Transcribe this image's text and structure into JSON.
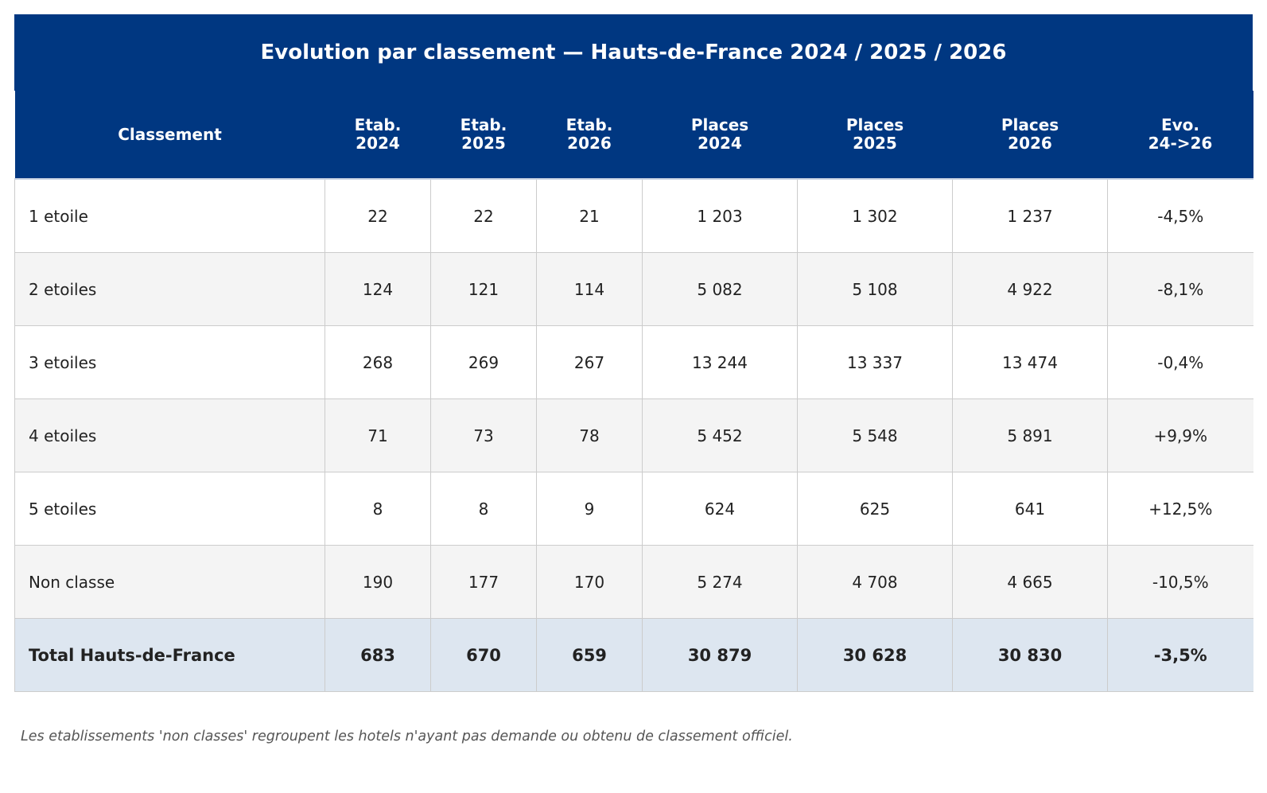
{
  "chart_data": {
    "type": "table",
    "title": "Evolution par classement — Hauts-de-France 2024 / 2025 / 2026",
    "header_bg": "#003781",
    "total_row_bg": "#dde6f0",
    "stripe_bg": "#f4f4f4",
    "columns": [
      [
        "Classement"
      ],
      [
        "Etab.",
        "2024"
      ],
      [
        "Etab.",
        "2025"
      ],
      [
        "Etab.",
        "2026"
      ],
      [
        "Places",
        "2024"
      ],
      [
        "Places",
        "2025"
      ],
      [
        "Places",
        "2026"
      ],
      [
        "Evo.",
        "24->26"
      ]
    ],
    "rows": [
      [
        "1 etoile",
        "22",
        "22",
        "21",
        "1 203",
        "1 302",
        "1 237",
        "-4,5%"
      ],
      [
        "2 etoiles",
        "124",
        "121",
        "114",
        "5 082",
        "5 108",
        "4 922",
        "-8,1%"
      ],
      [
        "3 etoiles",
        "268",
        "269",
        "267",
        "13 244",
        "13 337",
        "13 474",
        "-0,4%"
      ],
      [
        "4 etoiles",
        "71",
        "73",
        "78",
        "5 452",
        "5 548",
        "5 891",
        "+9,9%"
      ],
      [
        "5 etoiles",
        "8",
        "8",
        "9",
        "624",
        "625",
        "641",
        "+12,5%"
      ],
      [
        "Non classe",
        "190",
        "177",
        "170",
        "5 274",
        "4 708",
        "4 665",
        "-10,5%"
      ]
    ],
    "total": [
      "Total Hauts-de-France",
      "683",
      "670",
      "659",
      "30 879",
      "30 628",
      "30 830",
      "-3,5%"
    ],
    "footnote": "Les etablissements 'non classes' regroupent les hotels n'ayant pas demande ou obtenu de classement officiel."
  }
}
